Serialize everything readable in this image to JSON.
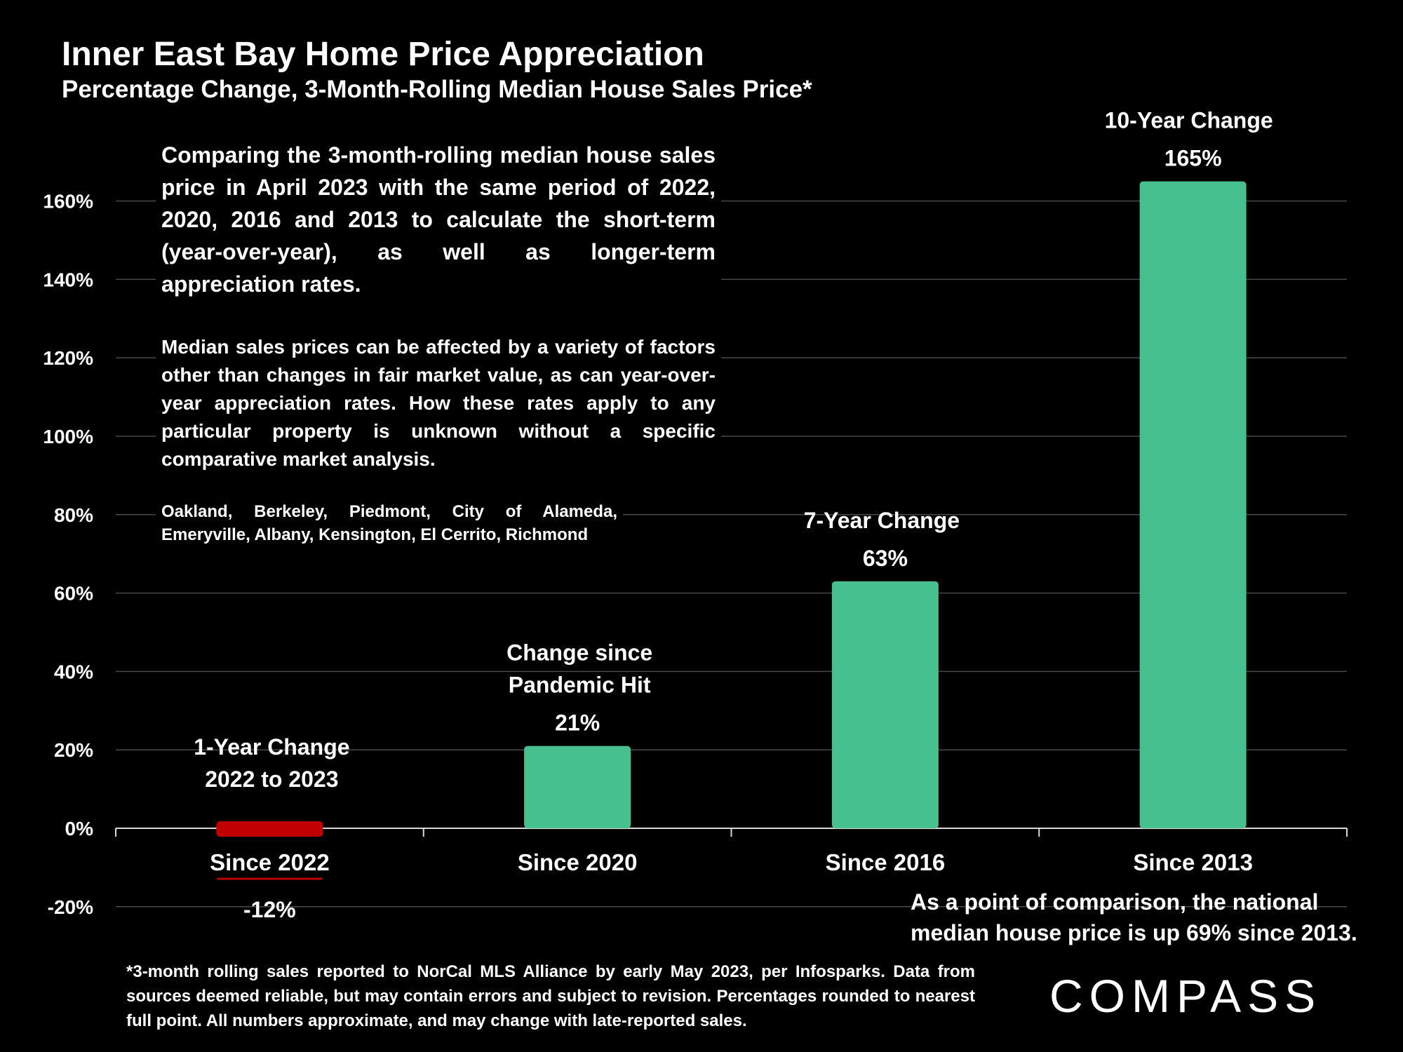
{
  "title": "Inner East Bay Home Price Appreciation",
  "subtitle": "Percentage Change, 3-Month-Rolling Median House Sales Price*",
  "text": {
    "intro": "Comparing the 3-month-rolling median house sales price in April 2023 with the same period of 2022, 2020, 2016 and 2013 to calculate the short-term (year-over-year), as well as longer-term appreciation rates.",
    "caveat": "Median sales prices can be affected by a variety of factors other than changes in fair market value, as can year-over-year appreciation rates. How these rates apply to any particular property is unknown without a specific comparative market analysis.",
    "areas": "Oakland, Berkeley, Piedmont, City of Alameda, Emeryville, Albany, Kensington, El Cerrito, Richmond",
    "comparison_line1": "As a point of comparison, the national",
    "comparison_line2": "median house price is up 69% since 2013.",
    "footnote": "*3-month rolling sales reported to NorCal MLS Alliance by early May 2023, per Infosparks. Data from sources deemed reliable, but may contain errors and subject to revision. Percentages rounded to nearest full point. All numbers approximate, and may change with late-reported sales."
  },
  "logo": "COMPASS",
  "colors": {
    "positive": "#45C08E",
    "negative": "#C00000",
    "background": "#000000",
    "grid": "#4a4a4a"
  },
  "chart_data": {
    "type": "bar",
    "categories": [
      "Since 2022",
      "Since 2020",
      "Since 2016",
      "Since 2013"
    ],
    "values": [
      -12,
      21,
      63,
      165
    ],
    "value_labels": [
      "-12%",
      "21%",
      "63%",
      "165%"
    ],
    "bar_labels": [
      [
        "1-Year Change",
        "2022 to 2023"
      ],
      [
        "Change since",
        "Pandemic Hit"
      ],
      [
        "7-Year Change"
      ],
      [
        "10-Year Change"
      ]
    ],
    "ylim": [
      -20,
      160
    ],
    "yticks": [
      -20,
      0,
      20,
      40,
      60,
      80,
      100,
      120,
      140,
      160
    ],
    "ytick_labels": [
      "-20%",
      "0%",
      "20%",
      "40%",
      "60%",
      "80%",
      "100%",
      "120%",
      "140%",
      "160%"
    ],
    "grid": true,
    "legend": "none"
  }
}
